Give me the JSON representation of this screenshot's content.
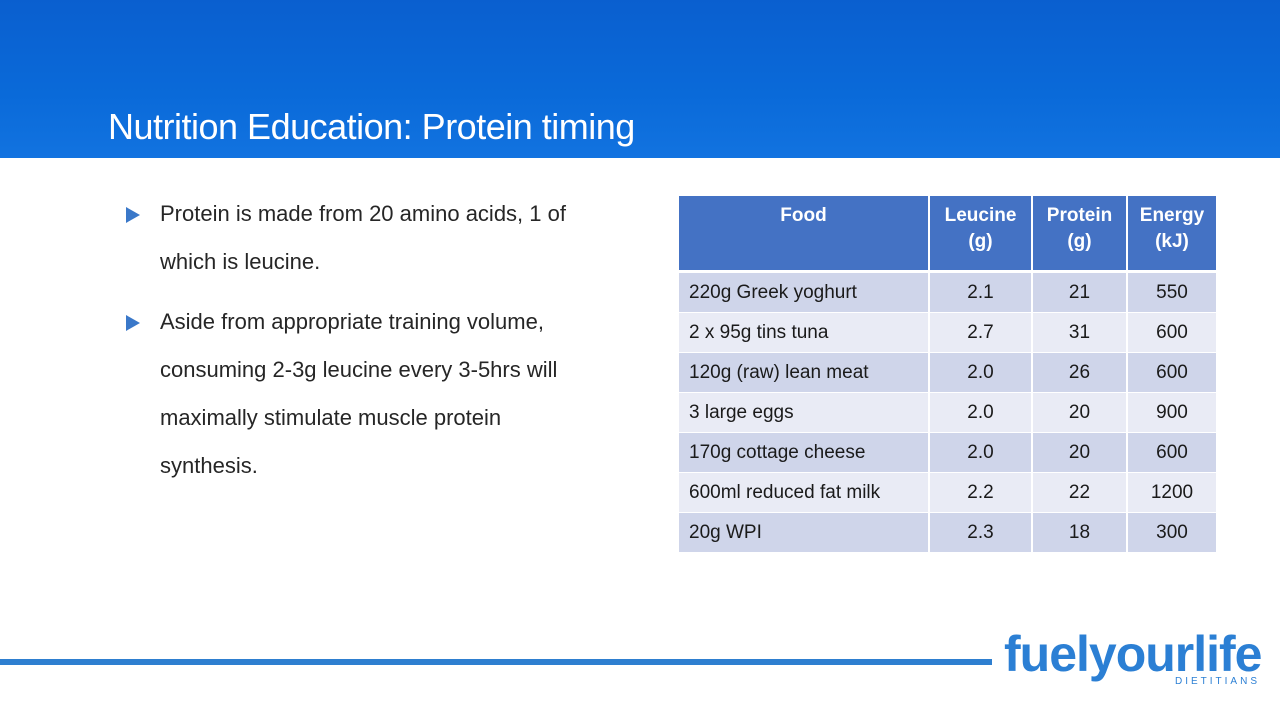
{
  "slide": {
    "title": "Nutrition Education: Protein timing"
  },
  "bullets": [
    "Protein is made from 20 amino acids, 1 of which is leucine.",
    "Aside from appropriate training volume, consuming 2-3g leucine every 3-5hrs will maximally stimulate muscle protein synthesis."
  ],
  "table": {
    "headers": [
      "Food",
      "Leucine (g)",
      "Protein (g)",
      "Energy (kJ)"
    ],
    "rows": [
      [
        "220g Greek yoghurt",
        "2.1",
        "21",
        "550"
      ],
      [
        "2 x 95g tins tuna",
        "2.7",
        "31",
        "600"
      ],
      [
        "120g (raw) lean meat",
        "2.0",
        "26",
        "600"
      ],
      [
        "3 large eggs",
        "2.0",
        "20",
        "900"
      ],
      [
        "170g cottage cheese",
        "2.0",
        "20",
        "600"
      ],
      [
        "600ml reduced fat milk",
        "2.2",
        "22",
        "1200"
      ],
      [
        "20g WPI",
        "2.3",
        "18",
        "300"
      ]
    ]
  },
  "logo": {
    "name": "fuelyourlife",
    "subtitle": "DIETITIANS"
  },
  "colors": {
    "header": "#0a6ad9",
    "table_header": "#4472c4",
    "row_dark": "#cfd5ea",
    "row_light": "#e9ebf5",
    "accent": "#2e7fd0"
  }
}
